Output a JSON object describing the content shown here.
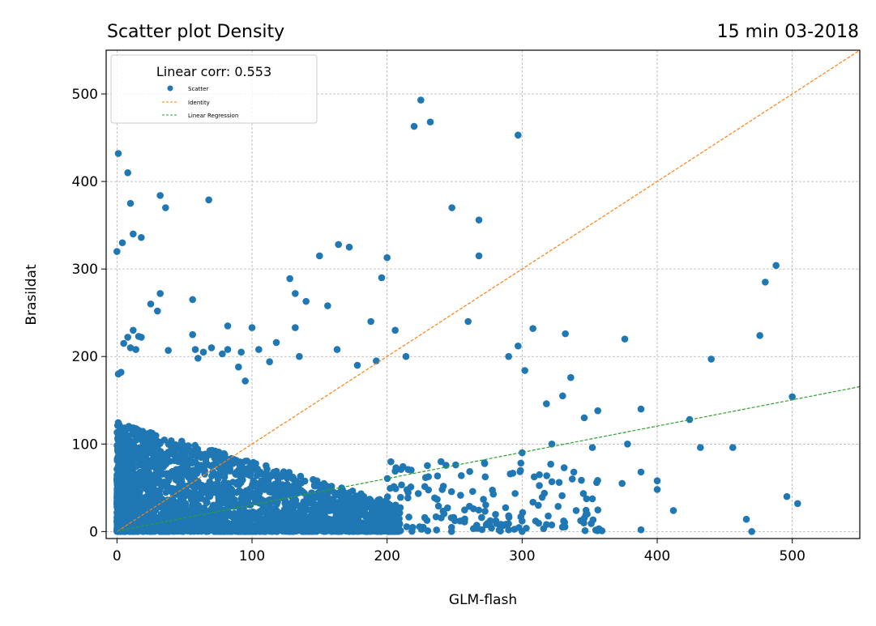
{
  "chart_data": {
    "type": "scatter",
    "title_left": "Scatter plot Density",
    "title_right": "15 min 03-2018",
    "xlabel": "GLM-flash",
    "ylabel": "Brasildat",
    "xlim": [
      -8,
      550
    ],
    "ylim": [
      -8,
      550
    ],
    "xticks": [
      0,
      100,
      200,
      300,
      400,
      500
    ],
    "yticks": [
      0,
      100,
      200,
      300,
      400,
      500
    ],
    "grid": true,
    "legend": {
      "placement": "top-left",
      "title": "Linear corr: 0.553",
      "entries": [
        "Scatter",
        "Identity",
        "Linear Regression"
      ]
    },
    "colors": {
      "scatter": "#1f77b4",
      "identity": "#ff7f0e",
      "regression": "#2ca02c"
    },
    "identity_line": {
      "slope": 1,
      "intercept": 0
    },
    "regression_line": {
      "slope": 0.3,
      "intercept": 0.5
    },
    "points_outliers": [
      [
        0,
        320
      ],
      [
        1,
        432
      ],
      [
        4,
        330
      ],
      [
        8,
        410
      ],
      [
        10,
        375
      ],
      [
        12,
        340
      ],
      [
        18,
        336
      ],
      [
        32,
        384
      ],
      [
        36,
        370
      ],
      [
        68,
        379
      ],
      [
        1,
        180
      ],
      [
        3,
        182
      ],
      [
        5,
        215
      ],
      [
        8,
        222
      ],
      [
        10,
        210
      ],
      [
        12,
        230
      ],
      [
        16,
        223
      ],
      [
        18,
        222
      ],
      [
        14,
        208
      ],
      [
        25,
        260
      ],
      [
        30,
        252
      ],
      [
        32,
        272
      ],
      [
        38,
        207
      ],
      [
        56,
        265
      ],
      [
        56,
        225
      ],
      [
        58,
        208
      ],
      [
        60,
        198
      ],
      [
        64,
        205
      ],
      [
        70,
        210
      ],
      [
        78,
        203
      ],
      [
        82,
        235
      ],
      [
        82,
        208
      ],
      [
        90,
        188
      ],
      [
        92,
        205
      ],
      [
        95,
        172
      ],
      [
        100,
        233
      ],
      [
        105,
        208
      ],
      [
        113,
        194
      ],
      [
        118,
        216
      ],
      [
        128,
        289
      ],
      [
        132,
        272
      ],
      [
        132,
        233
      ],
      [
        135,
        200
      ],
      [
        140,
        263
      ],
      [
        150,
        315
      ],
      [
        156,
        258
      ],
      [
        163,
        208
      ],
      [
        164,
        328
      ],
      [
        172,
        325
      ],
      [
        178,
        190
      ],
      [
        188,
        240
      ],
      [
        192,
        195
      ],
      [
        196,
        290
      ],
      [
        200,
        313
      ],
      [
        206,
        230
      ],
      [
        214,
        200
      ],
      [
        220,
        463
      ],
      [
        225,
        493
      ],
      [
        232,
        468
      ],
      [
        248,
        370
      ],
      [
        268,
        356
      ],
      [
        268,
        315
      ],
      [
        260,
        240
      ],
      [
        290,
        200
      ],
      [
        297,
        453
      ],
      [
        297,
        212
      ],
      [
        302,
        184
      ],
      [
        308,
        232
      ],
      [
        332,
        226
      ],
      [
        376,
        220
      ],
      [
        440,
        197
      ],
      [
        476,
        224
      ],
      [
        480,
        285
      ],
      [
        488,
        304
      ],
      [
        500,
        154
      ],
      [
        504,
        32
      ],
      [
        496,
        40
      ],
      [
        470,
        0
      ],
      [
        466,
        14
      ],
      [
        412,
        24
      ],
      [
        400,
        48
      ],
      [
        400,
        58
      ],
      [
        388,
        2
      ],
      [
        388,
        68
      ],
      [
        388,
        140
      ],
      [
        378,
        100
      ],
      [
        374,
        55
      ],
      [
        356,
        138
      ],
      [
        352,
        96
      ],
      [
        346,
        130
      ],
      [
        340,
        24
      ],
      [
        336,
        176
      ],
      [
        330,
        155
      ],
      [
        322,
        100
      ],
      [
        318,
        146
      ],
      [
        312,
        30
      ],
      [
        300,
        90
      ],
      [
        300,
        0
      ],
      [
        424,
        128
      ],
      [
        432,
        96
      ],
      [
        456,
        96
      ],
      [
        318,
        8
      ],
      [
        310,
        12
      ],
      [
        300,
        12
      ],
      [
        290,
        18
      ],
      [
        284,
        8
      ],
      [
        276,
        8
      ],
      [
        270,
        16
      ],
      [
        264,
        26
      ],
      [
        254,
        12
      ]
    ]
  }
}
